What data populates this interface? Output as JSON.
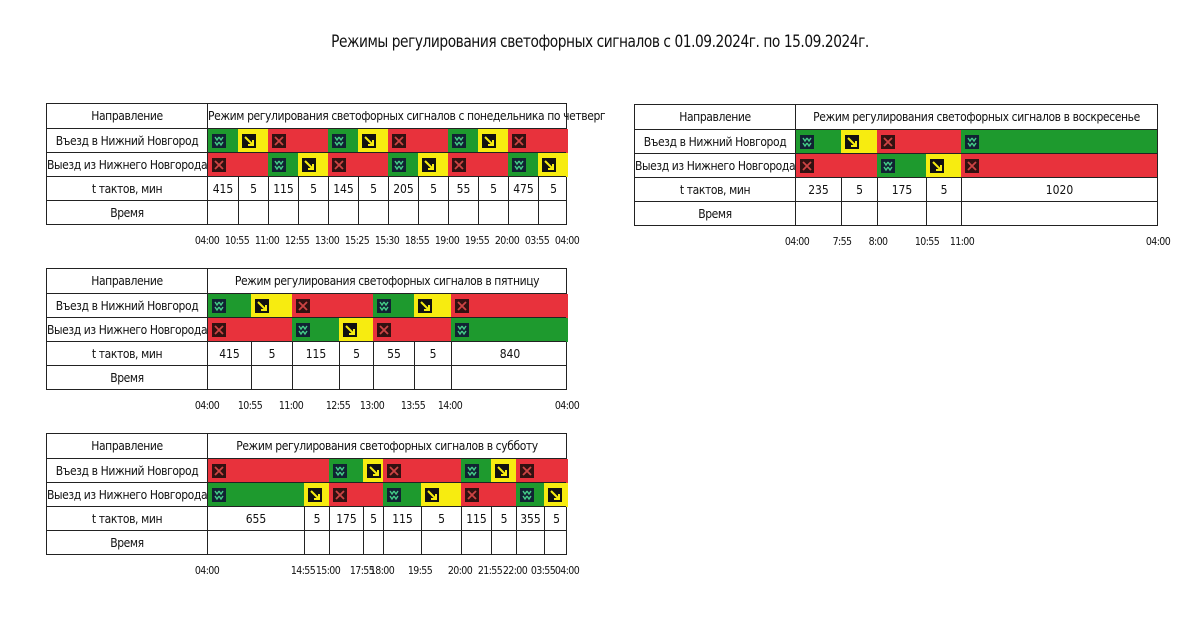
{
  "title": "Режимы регулирования светофорных сигналов с 01.09.2024г. по 15.09.2024г.",
  "labels": {
    "direction": "Направление",
    "entry": "Въезд в Нижний Новгород",
    "exit": "Выезд из Нижнего Новгорода",
    "duration": "t тактов, мин",
    "time": "Время"
  },
  "colors": {
    "green": "#1e9a2e",
    "yellow": "#f7ec10",
    "red": "#e8323c"
  },
  "icons": {
    "G": "arrows-down-icon",
    "Y": "diagonal-arrow-icon",
    "R": "cross-icon"
  },
  "tables": [
    {
      "header": "Режим регулирования светофорных сигналов с понедельника по четверг",
      "durations": [
        "415",
        "5",
        "115",
        "5",
        "145",
        "5",
        "205",
        "5",
        "55",
        "5",
        "475",
        "5"
      ],
      "entry": [
        "G",
        "Y",
        "R",
        "R-",
        "G",
        "Y",
        "R",
        "R-",
        "G",
        "Y",
        "R",
        "R-"
      ],
      "exit": [
        "R",
        "R-",
        "G",
        "Y",
        "R",
        "R-",
        "G",
        "Y",
        "R",
        "R-",
        "G",
        "Y"
      ],
      "times": [
        "04:00",
        "10:55",
        "11:00",
        "12:55",
        "13:00",
        "15:25",
        "15:30",
        "18:55",
        "19:00",
        "19:55",
        "20:00",
        "03:55",
        "04:00"
      ]
    },
    {
      "header": "Режим регулирования светофорных сигналов в пятницу",
      "durations": [
        "415",
        "5",
        "115",
        "5",
        "55",
        "5",
        "840"
      ],
      "entry": [
        "G",
        "Y",
        "R",
        "R-",
        "G",
        "Y",
        "R"
      ],
      "exit": [
        "R",
        "R-",
        "G",
        "Y",
        "R",
        "R-",
        "G"
      ],
      "times": [
        "04:00",
        "10:55",
        "11:00",
        "12:55",
        "13:00",
        "13:55",
        "14:00",
        "04:00"
      ]
    },
    {
      "header": "Режим регулирования светофорных сигналов в субботу",
      "durations": [
        "655",
        "5",
        "175",
        "5",
        "115",
        "5",
        "115",
        "5",
        "355",
        "5"
      ],
      "entry": [
        "R",
        "R-",
        "G",
        "Y",
        "R",
        "R-",
        "G",
        "Y",
        "R",
        "R-"
      ],
      "exit": [
        "G",
        "Y",
        "R",
        "R-",
        "G",
        "Y",
        "R",
        "R-",
        "G",
        "Y"
      ],
      "times": [
        "04:00",
        "14:55",
        "15:00",
        "17:55",
        "18:00",
        "19:55",
        "20:00",
        "21:55",
        "22:00",
        "03:55",
        "04:00"
      ]
    },
    {
      "header": "Режим регулирования светофорных сигналов в воскресенье",
      "durations": [
        "235",
        "5",
        "175",
        "5",
        "1020"
      ],
      "entry": [
        "G",
        "Y",
        "R",
        "R-",
        "G"
      ],
      "exit": [
        "R",
        "R-",
        "G",
        "Y",
        "R"
      ],
      "times": [
        "04:00",
        "7:55",
        "8:00",
        "10:55",
        "11:00",
        "04:00"
      ]
    }
  ]
}
